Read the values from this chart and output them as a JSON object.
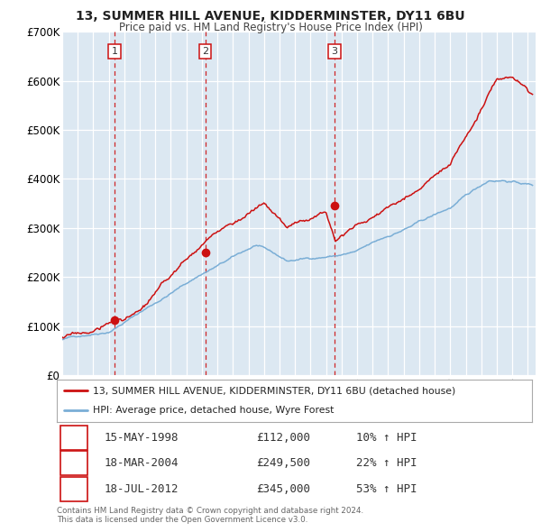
{
  "title_line1": "13, SUMMER HILL AVENUE, KIDDERMINSTER, DY11 6BU",
  "title_line2": "Price paid vs. HM Land Registry's House Price Index (HPI)",
  "bg_color": "#dce8f2",
  "line1_color": "#cc1111",
  "line2_color": "#7aaed6",
  "sale_marker_color": "#cc1111",
  "vline_color": "#cc1111",
  "ylim": [
    0,
    700000
  ],
  "yticks": [
    0,
    100000,
    200000,
    300000,
    400000,
    500000,
    600000,
    700000
  ],
  "ytick_labels": [
    "£0",
    "£100K",
    "£200K",
    "£300K",
    "£400K",
    "£500K",
    "£600K",
    "£700K"
  ],
  "sale_points": [
    {
      "year": 1998.37,
      "price": 112000,
      "label": "1",
      "date": "15-MAY-1998",
      "amount": "£112,000",
      "hpi_pct": "10% ↑ HPI"
    },
    {
      "year": 2004.21,
      "price": 249500,
      "label": "2",
      "date": "18-MAR-2004",
      "amount": "£249,500",
      "hpi_pct": "22% ↑ HPI"
    },
    {
      "year": 2012.54,
      "price": 345000,
      "label": "3",
      "date": "18-JUL-2012",
      "amount": "£345,000",
      "hpi_pct": "53% ↑ HPI"
    }
  ],
  "legend_line1": "13, SUMMER HILL AVENUE, KIDDERMINSTER, DY11 6BU (detached house)",
  "legend_line2": "HPI: Average price, detached house, Wyre Forest",
  "footer_line1": "Contains HM Land Registry data © Crown copyright and database right 2024.",
  "footer_line2": "This data is licensed under the Open Government Licence v3.0.",
  "xmin": 1995.0,
  "xmax": 2025.5
}
